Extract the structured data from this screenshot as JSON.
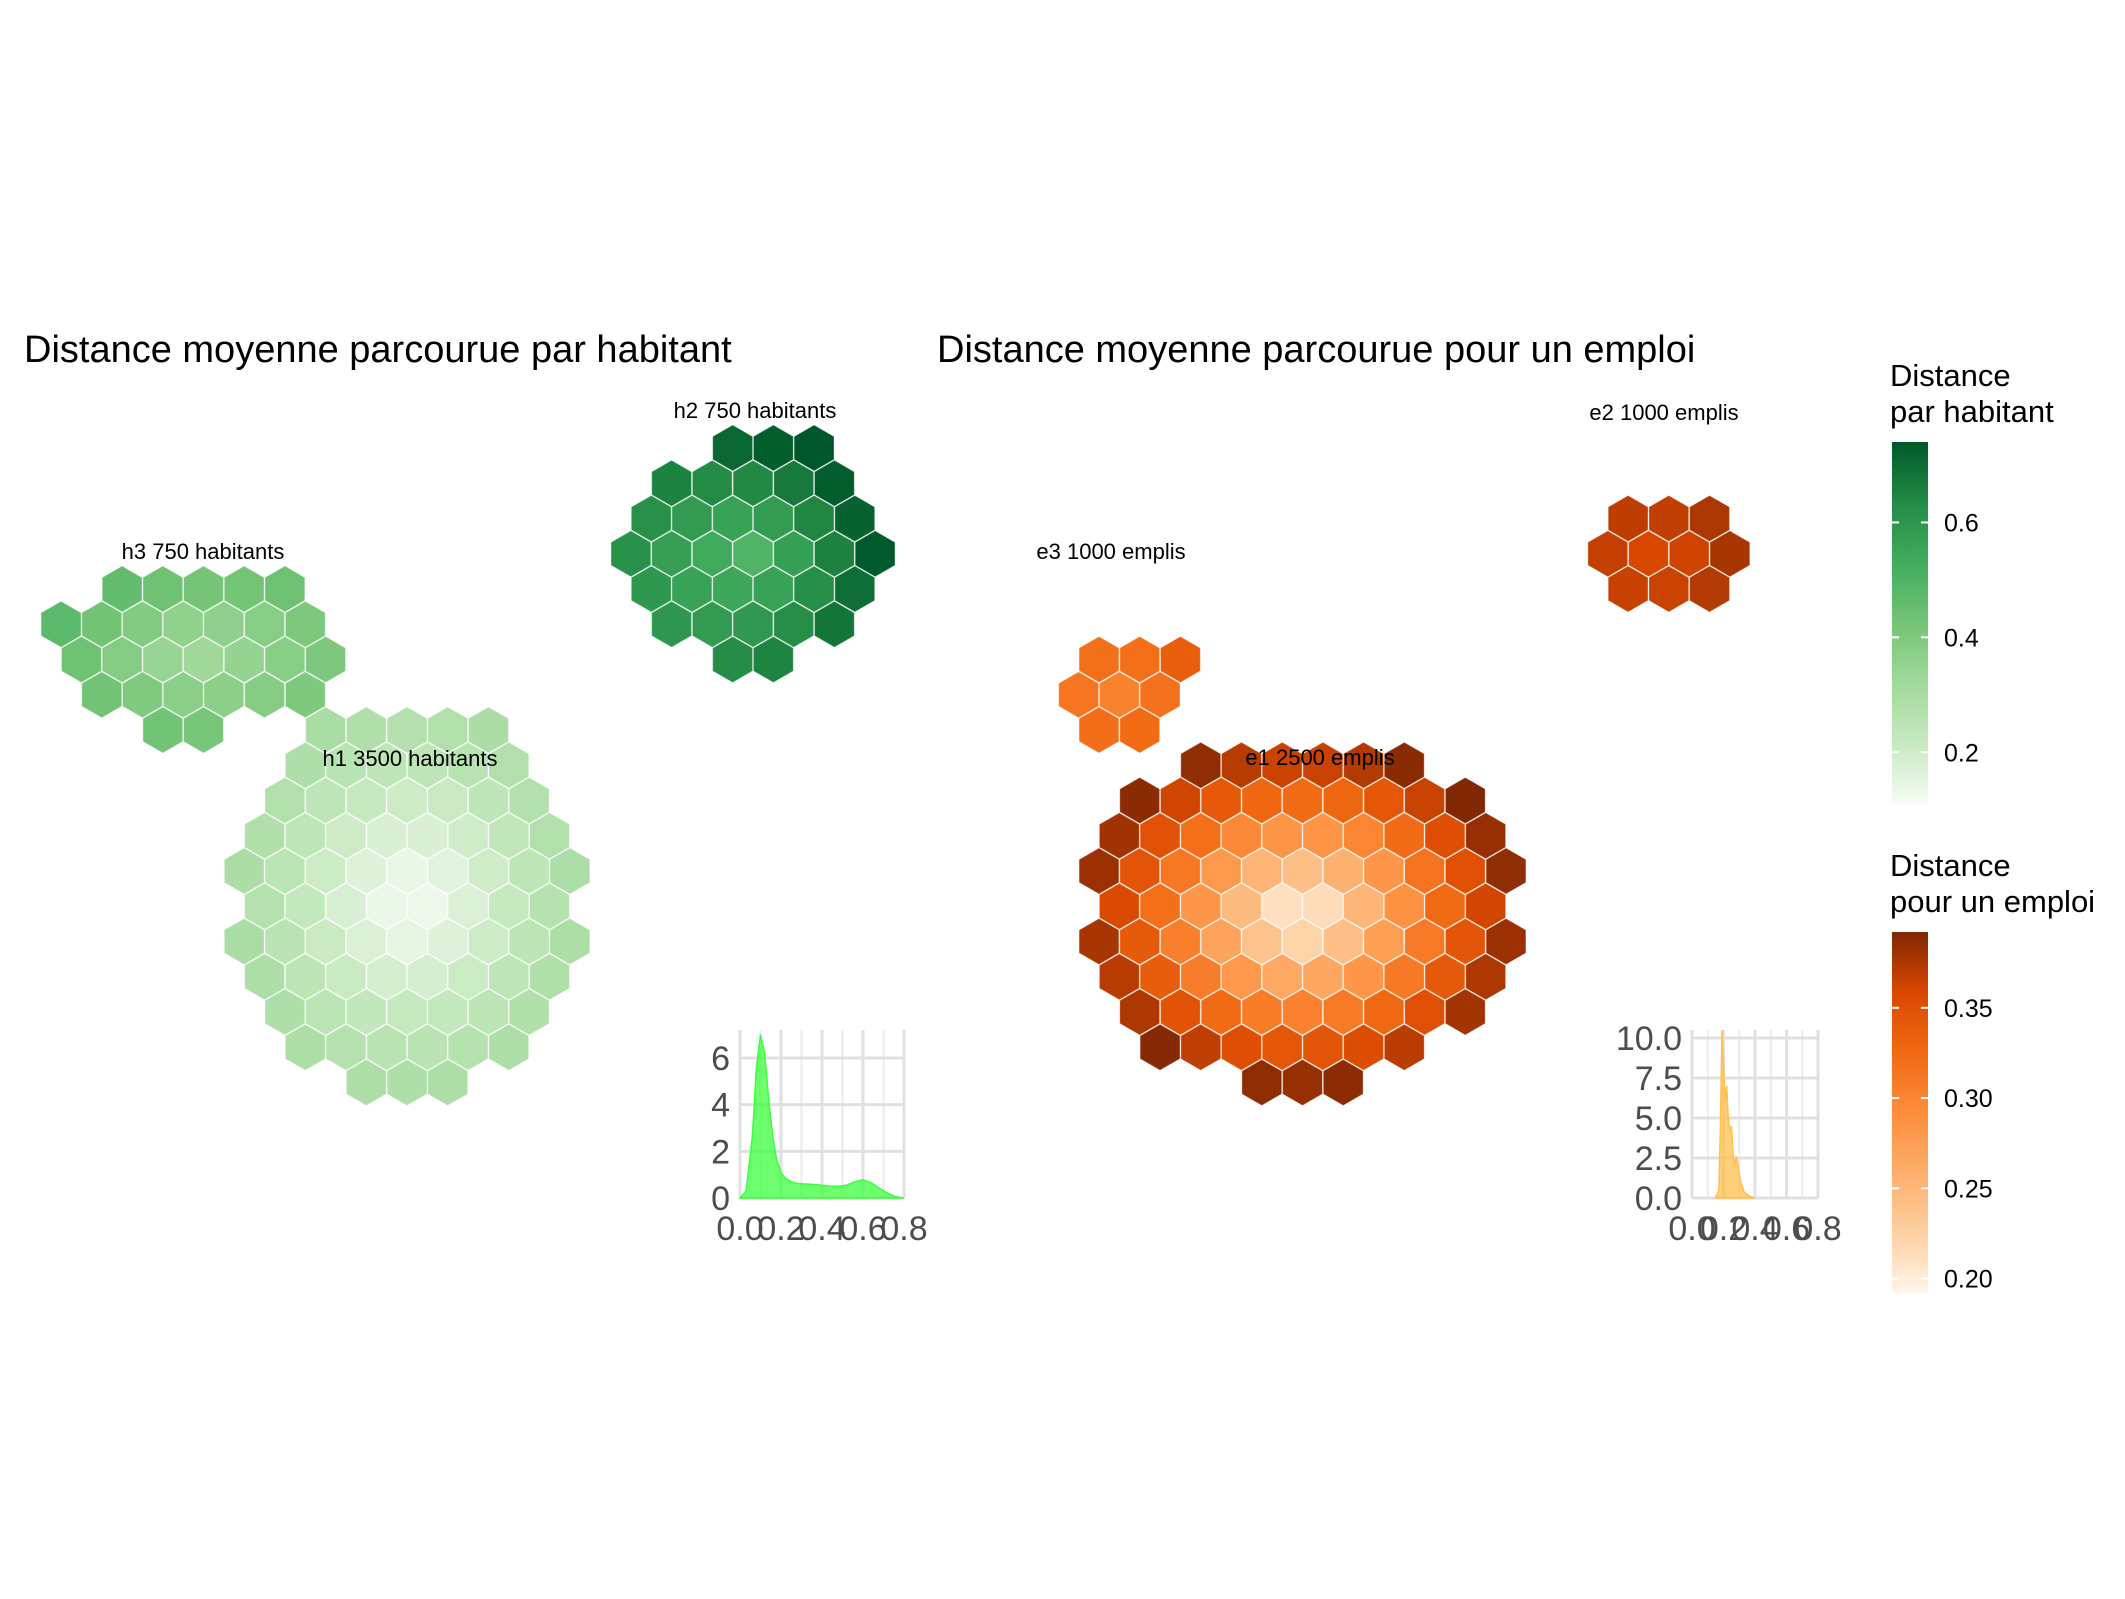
{
  "panels": [
    {
      "title": "Distance moyenne parcourue par habitant",
      "labels": [
        "h2 750 habitants",
        "h3 750 habitants",
        "h1 3500 habitants"
      ]
    },
    {
      "title": "Distance moyenne parcourue pour un emploi",
      "labels": [
        "e2 1000 emplis",
        "e3 1000 emplis",
        "e1 2500 emplis"
      ]
    }
  ],
  "legends": [
    {
      "title_line1": "Distance",
      "title_line2": "par habitant",
      "ticks": [
        "0.6",
        "0.4",
        "0.2"
      ],
      "tick_values": [
        0.6,
        0.4,
        0.2
      ],
      "range": [
        0.11,
        0.74
      ],
      "colors": [
        "#F7FCF5",
        "#C7E9C0",
        "#A1D99B",
        "#74C476",
        "#41AB5D",
        "#238B45",
        "#00582A"
      ]
    },
    {
      "title_line1": "Distance",
      "title_line2": "pour un emploi",
      "ticks": [
        "0.35",
        "0.30",
        "0.25",
        "0.20"
      ],
      "tick_values": [
        0.35,
        0.3,
        0.25,
        0.2
      ],
      "range": [
        0.192,
        0.392
      ],
      "colors": [
        "#FFF5EB",
        "#FDD0A2",
        "#FDAE6B",
        "#FD8D3C",
        "#F16913",
        "#D94801",
        "#7F2704"
      ]
    }
  ],
  "chart_data": [
    {
      "type": "heatmap",
      "title": "Distance moyenne parcourue par habitant",
      "description_layer": "hexbin map of mean distance travelled per inhabitant",
      "clusters": [
        {
          "label": "h1 3500 habitants",
          "distance_min": 0.11,
          "distance_max": 0.3,
          "distance_typical": 0.16
        },
        {
          "label": "h2 750 habitants",
          "distance_min": 0.45,
          "distance_max": 0.74,
          "distance_typical": 0.58
        },
        {
          "label": "h3 750 habitants",
          "distance_min": 0.28,
          "distance_max": 0.48,
          "distance_typical": 0.36
        }
      ],
      "legend_title": "Distance par habitant",
      "color_range": [
        0.11,
        0.74
      ]
    },
    {
      "type": "area",
      "title": "",
      "xlabel": "",
      "ylabel": "",
      "x_ticks": [
        "0.0",
        "0.2",
        "0.4",
        "0.6",
        "0.8"
      ],
      "y_ticks": [
        "0",
        "2",
        "4",
        "6"
      ],
      "xlim": [
        0,
        0.8
      ],
      "ylim": [
        0,
        7.2
      ],
      "fill": "#3CFF3C",
      "x": [
        0.0,
        0.03,
        0.06,
        0.08,
        0.1,
        0.12,
        0.14,
        0.16,
        0.18,
        0.2,
        0.22,
        0.25,
        0.28,
        0.32,
        0.36,
        0.4,
        0.44,
        0.48,
        0.52,
        0.56,
        0.6,
        0.64,
        0.68,
        0.72,
        0.76,
        0.8
      ],
      "y": [
        0.0,
        0.3,
        2.6,
        5.6,
        7.0,
        6.2,
        4.2,
        2.6,
        1.6,
        1.1,
        0.85,
        0.7,
        0.62,
        0.6,
        0.58,
        0.55,
        0.5,
        0.5,
        0.55,
        0.7,
        0.78,
        0.65,
        0.42,
        0.2,
        0.05,
        0.0
      ]
    },
    {
      "type": "heatmap",
      "title": "Distance moyenne parcourue pour un emploi",
      "description_layer": "hexbin map of mean distance travelled per job",
      "clusters": [
        {
          "label": "e1 2500 emplis",
          "distance_min": 0.192,
          "distance_max": 0.392,
          "distance_typical": 0.24
        },
        {
          "label": "e2 1000 emplis",
          "distance_min": 0.35,
          "distance_max": 0.38,
          "distance_typical": 0.36
        },
        {
          "label": "e3 1000 emplis",
          "distance_min": 0.29,
          "distance_max": 0.34,
          "distance_typical": 0.31
        }
      ],
      "legend_title": "Distance pour un emploi",
      "color_range": [
        0.192,
        0.392
      ]
    },
    {
      "type": "area",
      "title": "",
      "xlabel": "",
      "ylabel": "",
      "x_ticks": [
        "0.0",
        "0.2",
        "0.4",
        "0.6",
        "0.8"
      ],
      "y_ticks": [
        "0.0",
        "2.5",
        "5.0",
        "7.5",
        "10.0"
      ],
      "xlim": [
        0,
        0.8
      ],
      "ylim": [
        0,
        10.5
      ],
      "fill": "#FFC04C",
      "x": [
        0.15,
        0.17,
        0.18,
        0.19,
        0.2,
        0.21,
        0.22,
        0.23,
        0.24,
        0.25,
        0.26,
        0.27,
        0.28,
        0.29,
        0.3,
        0.31,
        0.32,
        0.33,
        0.34,
        0.35,
        0.36,
        0.37,
        0.38,
        0.39,
        0.4
      ],
      "y": [
        0.0,
        0.5,
        4.0,
        10.5,
        8.5,
        6.0,
        7.0,
        5.0,
        4.2,
        4.5,
        2.8,
        2.0,
        2.6,
        2.2,
        1.4,
        1.0,
        0.7,
        0.4,
        0.3,
        0.2,
        0.15,
        0.1,
        0.05,
        0.03,
        0.0
      ]
    }
  ]
}
